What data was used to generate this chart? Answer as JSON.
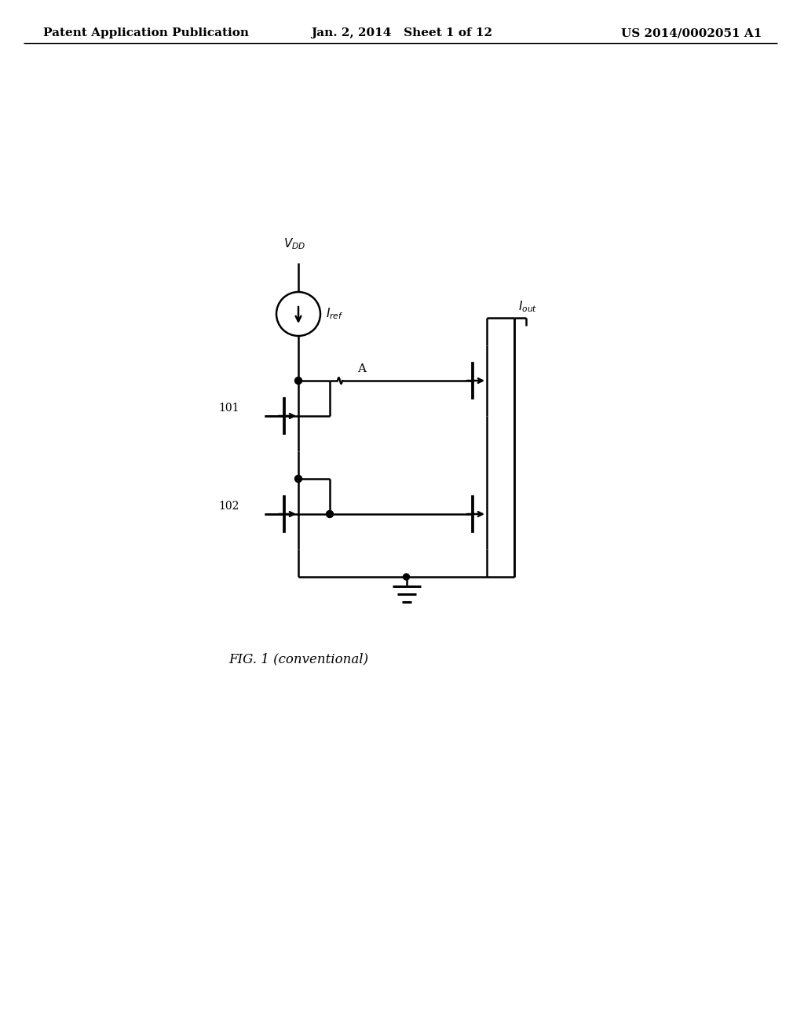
{
  "title_left": "Patent Application Publication",
  "title_center": "Jan. 2, 2014   Sheet 1 of 12",
  "title_right": "US 2014/0002051 A1",
  "caption": "FIG. 1 (conventional)",
  "bg_color": "#ffffff",
  "line_color": "#000000",
  "line_width": 1.8,
  "font_size_header": 11,
  "font_size_label": 10,
  "font_size_caption": 12
}
